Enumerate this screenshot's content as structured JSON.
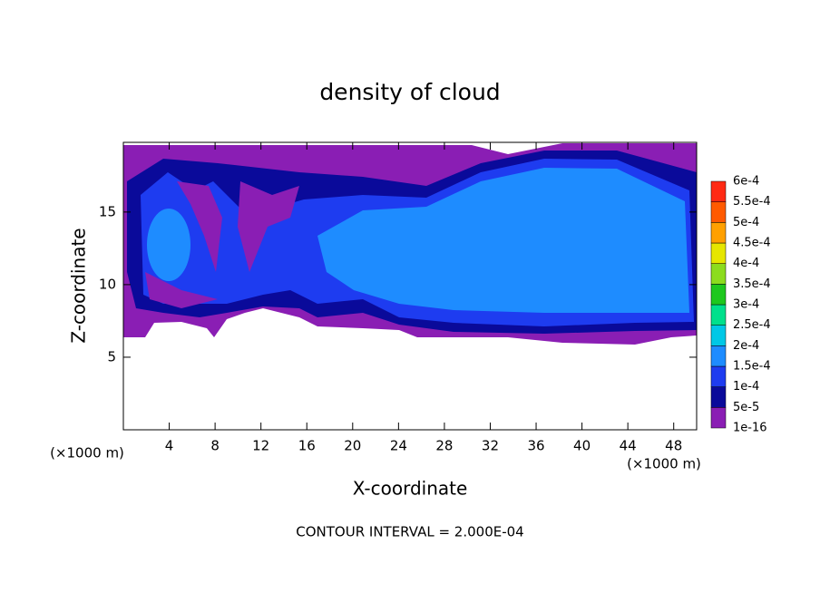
{
  "chart_data": {
    "type": "contour",
    "title": "density of cloud",
    "x_label": "X-coordinate",
    "y_label": "Z-coordinate",
    "x_unit": "(×1000 m)",
    "z_unit": "(×1000 m)",
    "footer": "CONTOUR INTERVAL = 2.000E-04",
    "xlim": [
      0,
      50
    ],
    "xticks": [
      4,
      8,
      12,
      16,
      20,
      24,
      28,
      32,
      36,
      40,
      44,
      48
    ],
    "ylim": [
      0,
      19.8
    ],
    "yticks": [
      5,
      10,
      15
    ],
    "colorbar": {
      "levels": [
        {
          "value": 1e-16,
          "label": "1e-16"
        },
        {
          "value": 5e-05,
          "label": "5e-5"
        },
        {
          "value": 0.0001,
          "label": "1e-4"
        },
        {
          "value": 0.00015,
          "label": "1.5e-4"
        },
        {
          "value": 0.0002,
          "label": "2e-4"
        },
        {
          "value": 0.00025,
          "label": "2.5e-4"
        },
        {
          "value": 0.0003,
          "label": "3e-4"
        },
        {
          "value": 0.00035,
          "label": "3.5e-4"
        },
        {
          "value": 0.0004,
          "label": "4e-4"
        },
        {
          "value": 0.00045,
          "label": "4.5e-4"
        },
        {
          "value": 0.0005,
          "label": "5e-4"
        },
        {
          "value": 0.00055,
          "label": "5.5e-4"
        },
        {
          "value": 0.0006,
          "label": "6e-4"
        }
      ],
      "colors": [
        "#8a1eb4",
        "#0a0a9a",
        "#1e3cf0",
        "#1e8cff",
        "#00c8e6",
        "#00e08c",
        "#1ec81e",
        "#8cdc1e",
        "#e6e600",
        "#ffa000",
        "#ff5a00",
        "#ff2a14",
        "#f08080"
      ]
    }
  }
}
